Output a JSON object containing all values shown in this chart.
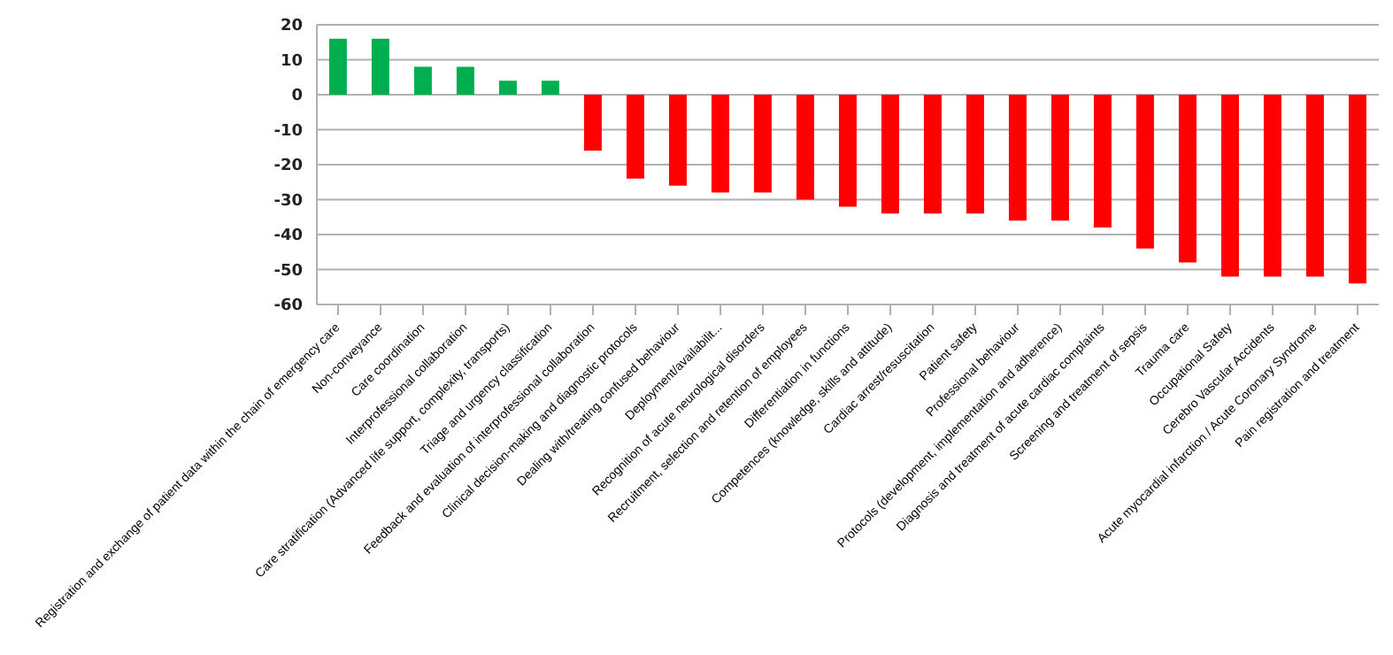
{
  "chart_data": {
    "type": "bar",
    "categories": [
      "Registration and exchange of patient data within the chain of emergency care",
      "Non-conveyance",
      "Care coordination",
      "Interprofessional collaboration",
      "Care stratification (Advanced life support, complexity, transports)",
      "Triage and urgency classification",
      "Feedback and evaluation of interprofessional collaboration",
      "Clinical decision-making and diagnostic protocols",
      "Dealing with/treating confused behaviour",
      "Deployment/availabilit...",
      "Recognition of acute neurological disorders",
      "Recruitment, selection and retention of employees",
      "Differentiation in functions",
      "Competences (knowledge, skills and attitude)",
      "Cardiac arrest/resuscitation",
      "Patient safety",
      "Professional behaviour",
      "Protocols (development, implementation and adherence)",
      "Diagnosis and treatment of acute cardiac complaints",
      "Screening and treatment of sepsis",
      "Trauma care",
      "Occupational Safety",
      "Cerebro Vascular Accidents",
      "Acute myocardial infarction / Acute Coronary Syndrome",
      "Pain registration and treatment"
    ],
    "values": [
      16,
      16,
      8,
      8,
      4,
      4,
      -16,
      -24,
      -26,
      -28,
      -28,
      -30,
      -32,
      -34,
      -34,
      -34,
      -36,
      -36,
      -38,
      -44,
      -48,
      -52,
      -52,
      -52,
      -54
    ],
    "colors": [
      "#00b050",
      "#00b050",
      "#00b050",
      "#00b050",
      "#00b050",
      "#00b050",
      "#ff0000",
      "#ff0000",
      "#ff0000",
      "#ff0000",
      "#ff0000",
      "#ff0000",
      "#ff0000",
      "#ff0000",
      "#ff0000",
      "#ff0000",
      "#ff0000",
      "#ff0000",
      "#ff0000",
      "#ff0000",
      "#ff0000",
      "#ff0000",
      "#ff0000",
      "#ff0000",
      "#ff0000"
    ],
    "ylim": [
      -60,
      20
    ],
    "yticks": [
      -60,
      -50,
      -40,
      -30,
      -20,
      -10,
      0,
      10,
      20
    ],
    "grid": "y"
  }
}
